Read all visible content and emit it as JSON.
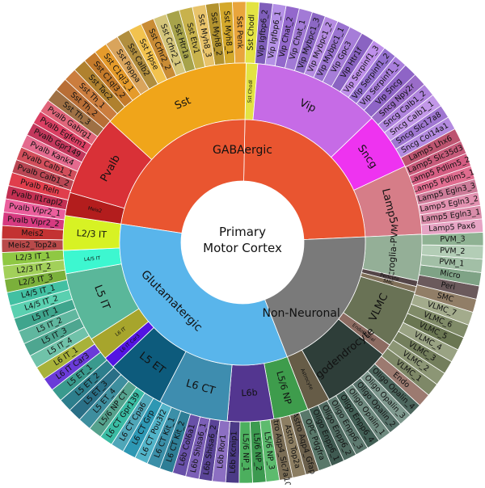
{
  "center": {
    "line1": "Primary",
    "line2": "Motor Cortex"
  },
  "classes": [
    {
      "label": "GABAergic",
      "color": "#E95530",
      "weight": 44
    },
    {
      "label": "Glutamatergic",
      "color": "#59B5EB",
      "weight": 41
    },
    {
      "label": "Non-Neuronal",
      "color": "#7A7A7A",
      "weight": 15
    }
  ],
  "subclasses": [
    {
      "label": "Sst",
      "class": "GABAergic",
      "color": "#F0A51A",
      "weight": 13
    },
    {
      "label": "Sst Chodl",
      "class": "GABAergic",
      "color": "#E3E343",
      "weight": 1
    },
    {
      "label": "Vip",
      "class": "GABAergic",
      "color": "#C66BE6",
      "weight": 11
    },
    {
      "label": "Sncg",
      "class": "GABAergic",
      "color": "#EE33F0",
      "weight": 5
    },
    {
      "label": "Lamp5",
      "class": "GABAergic",
      "color": "#D67D88",
      "weight": 6
    },
    {
      "label": "Meis2",
      "class": "GABAergic",
      "color": "#B31D1D",
      "weight": 2
    },
    {
      "label": "Pvalb",
      "class": "GABAergic",
      "color": "#D93137",
      "weight": 7
    },
    {
      "label": "L2/3 IT",
      "class": "Glutamatergic",
      "color": "#D7F224",
      "weight": 3
    },
    {
      "label": "L4/5 IT",
      "class": "Glutamatergic",
      "color": "#3DF7D0",
      "weight": 2
    },
    {
      "label": "L5 IT",
      "class": "Glutamatergic",
      "color": "#5AB79A",
      "weight": 6
    },
    {
      "label": "L6 IT",
      "class": "Glutamatergic",
      "color": "#A7A52C",
      "weight": 2
    },
    {
      "label": "L6 IT Car3",
      "class": "Glutamatergic",
      "color": "#5314E2",
      "weight": 1
    },
    {
      "label": "L5 ET",
      "class": "Glutamatergic",
      "color": "#0D5B7C",
      "weight": 5
    },
    {
      "label": "L6 CT",
      "class": "Glutamatergic",
      "color": "#3E8DAF",
      "weight": 6
    },
    {
      "label": "L6b",
      "class": "Glutamatergic",
      "color": "#533690",
      "weight": 4
    },
    {
      "label": "L5/6 NP",
      "class": "Glutamatergic",
      "color": "#3E9C4C",
      "weight": 3
    },
    {
      "label": "Astrocyte",
      "class": "Non-Neuronal",
      "color": "#665C47",
      "weight": 2
    },
    {
      "label": "Oligodendrocyte",
      "class": "Non-Neuronal",
      "color": "#2E3E39",
      "weight": 6
    },
    {
      "label": "Endothelial",
      "class": "Non-Neuronal",
      "color": "#8D6C62",
      "weight": 1
    },
    {
      "label": "VLMC",
      "class": "Non-Neuronal",
      "color": "#697255",
      "weight": 5
    },
    {
      "label": "SMC",
      "class": "Non-Neuronal",
      "color": "#807059",
      "weight": 0.5
    },
    {
      "label": "Pericyte",
      "class": "Non-Neuronal",
      "color": "#544547",
      "weight": 0.5
    },
    {
      "label": "Microglia-PVM",
      "class": "Non-Neuronal",
      "color": "#94AF97",
      "weight": 4
    }
  ],
  "clusters": [
    {
      "label": "Sst Chodl",
      "color": "#E3E343"
    },
    {
      "label": "Sst Penk",
      "color": "#E9A53C"
    },
    {
      "label": "Sst Myh8_1",
      "color": "#D4A82A"
    },
    {
      "label": "Sst Myh8_2",
      "color": "#B3932F"
    },
    {
      "label": "Sst Myh8_3",
      "color": "#E8C36A"
    },
    {
      "label": "Sst Etv1",
      "color": "#C8B24C"
    },
    {
      "label": "Sst Htr1a",
      "color": "#A7A34A"
    },
    {
      "label": "Sst Crhr2_1",
      "color": "#D4C57A"
    },
    {
      "label": "Sst Crhr2_2",
      "color": "#C98C35"
    },
    {
      "label": "Sst Hpse",
      "color": "#F2C24E"
    },
    {
      "label": "Sst Calb2",
      "color": "#B18E3E"
    },
    {
      "label": "Sst Pappa",
      "color": "#D9A45C"
    },
    {
      "label": "Sst C1ql3_1",
      "color": "#E59B2B"
    },
    {
      "label": "Sst C1ql3_2",
      "color": "#C47A2A"
    },
    {
      "label": "Sst Tac2",
      "color": "#B0812E"
    },
    {
      "label": "Sst Th_1",
      "color": "#CB7D3E"
    },
    {
      "label": "Sst Th_2",
      "color": "#B86E36"
    },
    {
      "label": "Sst Th_3",
      "color": "#9E7044"
    },
    {
      "label": "Pvalb Gabrg1",
      "color": "#E0657A"
    },
    {
      "label": "Pvalb Egfem1",
      "color": "#DA3F63"
    },
    {
      "label": "Pvalb Gpr149",
      "color": "#C2375C"
    },
    {
      "label": "Pvalb Kank4",
      "color": "#E46A8E"
    },
    {
      "label": "Pvalb Calb1_1",
      "color": "#D24E5B"
    },
    {
      "label": "Pvalb Calb1_2",
      "color": "#B94653"
    },
    {
      "label": "Pvalb Reln",
      "color": "#E03E4C"
    },
    {
      "label": "Pvalb Il1rapl2",
      "color": "#C32F52"
    },
    {
      "label": "Pvalb Vipr2_1",
      "color": "#EA5E9C"
    },
    {
      "label": "Pvalb Vipr2_2",
      "color": "#D63A80"
    },
    {
      "label": "Meis2",
      "color": "#C33232"
    },
    {
      "label": "Meis2_Top2a",
      "color": "#B94A4A"
    },
    {
      "label": "L2/3 IT_1",
      "color": "#8FC843"
    },
    {
      "label": "L2/3 IT_2",
      "color": "#A2D05A"
    },
    {
      "label": "L2/3 IT_3",
      "color": "#7BB03B"
    },
    {
      "label": "L4/5 IT_1",
      "color": "#42C0A2"
    },
    {
      "label": "L4/5 IT_2",
      "color": "#5AD0B0"
    },
    {
      "label": "L5 IT_1",
      "color": "#3FA58D"
    },
    {
      "label": "L5 IT_2",
      "color": "#60B79F"
    },
    {
      "label": "L5 IT_3",
      "color": "#4EA690"
    },
    {
      "label": "L5 IT_4",
      "color": "#70C2A9"
    },
    {
      "label": "L6 IT_1",
      "color": "#A8B23A"
    },
    {
      "label": "L6 IT Car3",
      "color": "#6A3BD8"
    },
    {
      "label": "L5 ET_1",
      "color": "#3A9A8E"
    },
    {
      "label": "L5 ET_2",
      "color": "#2D7E8C"
    },
    {
      "label": "L5 ET_3",
      "color": "#2A6F86"
    },
    {
      "label": "L5 ET_4",
      "color": "#3E8E9E"
    },
    {
      "label": "L5/6 NP CT",
      "color": "#55A28D"
    },
    {
      "label": "L6 CT Gpr139",
      "color": "#3ABCA4"
    },
    {
      "label": "L6 CT Cpa6",
      "color": "#4FA6B8"
    },
    {
      "label": "L6 CT Grp",
      "color": "#2D97B3"
    },
    {
      "label": "L6 CT Pou3f2",
      "color": "#51B3C8"
    },
    {
      "label": "L6 CT Kit_1",
      "color": "#3B8FA8"
    },
    {
      "label": "L6 CT Kit_2",
      "color": "#2E7E96"
    },
    {
      "label": "L6b Col6a1",
      "color": "#6850A8"
    },
    {
      "label": "L6b Shisa6_1",
      "color": "#7B5FB6"
    },
    {
      "label": "L6b Shisa6_2",
      "color": "#5A4497"
    },
    {
      "label": "L6b Ror1",
      "color": "#8C6FC2"
    },
    {
      "label": "L6b Kcnip1",
      "color": "#4B3A86"
    },
    {
      "label": "L5/6 NP_1",
      "color": "#4CAF5E"
    },
    {
      "label": "L5/6 NP_2",
      "color": "#3C9A50"
    },
    {
      "label": "L5/6 NP_3",
      "color": "#5DBB6E"
    },
    {
      "label": "Astro Aqp4_Slc7a10",
      "color": "#7A6D55"
    },
    {
      "label": "Astro Top2a",
      "color": "#8C7E62"
    },
    {
      "label": "Astro Aqp4_Gfap",
      "color": "#6B604C"
    },
    {
      "label": "OPC Pdgfra",
      "color": "#59786A"
    },
    {
      "label": "Oligo Enpp6_1",
      "color": "#3F5A51"
    },
    {
      "label": "Oligo Enpp6_2",
      "color": "#4F6A60"
    },
    {
      "label": "Oligo Enpp6_3",
      "color": "#5E7A70"
    },
    {
      "label": "Oligo Enpp6_4",
      "color": "#425F55"
    },
    {
      "label": "Oligo Opalin_1",
      "color": "#6E8A7F"
    },
    {
      "label": "Oligo Opalin_2",
      "color": "#557068"
    },
    {
      "label": "Oligo Opalin_3",
      "color": "#7D978D"
    },
    {
      "label": "Oligo Opalin_4",
      "color": "#4C665D"
    },
    {
      "label": "Endo",
      "color": "#9C7A70"
    },
    {
      "label": "VLMC_1",
      "color": "#7E8867"
    },
    {
      "label": "VLMC_2",
      "color": "#8C9675"
    },
    {
      "label": "VLMC_3",
      "color": "#737E5C"
    },
    {
      "label": "VLMC_4",
      "color": "#99A283"
    },
    {
      "label": "VLMC_5",
      "color": "#6A7652"
    },
    {
      "label": "VLMC_6",
      "color": "#808B68"
    },
    {
      "label": "VLMC_7",
      "color": "#A3AB8C"
    },
    {
      "label": "SMC",
      "color": "#917E67"
    },
    {
      "label": "Peri",
      "color": "#6B5A5C"
    },
    {
      "label": "Micro",
      "color": "#7FA386"
    },
    {
      "label": "PVM_1",
      "color": "#A2BFA6"
    },
    {
      "label": "PVM_2",
      "color": "#B3CDB6"
    },
    {
      "label": "PVM_3",
      "color": "#8FB293"
    },
    {
      "label": "Lamp5 Pax6",
      "color": "#E6A4C4"
    },
    {
      "label": "Lamp5 Egln3_1",
      "color": "#D98CA9"
    },
    {
      "label": "Lamp5 Egln3_2",
      "color": "#E291B0"
    },
    {
      "label": "Lamp5 Egln3_3",
      "color": "#CC7B98"
    },
    {
      "label": "Lamp5 Pdlim5_1",
      "color": "#E06C8F"
    },
    {
      "label": "Lamp5 Pdlim5_2",
      "color": "#D45D82"
    },
    {
      "label": "Lamp5 Slc35d3",
      "color": "#C75A7A"
    },
    {
      "label": "Lamp5 Lhx6",
      "color": "#BD5470"
    },
    {
      "label": "Sncg Col14a1",
      "color": "#B38ADF"
    },
    {
      "label": "Sncg Slc17a8",
      "color": "#9F76D1"
    },
    {
      "label": "Sncg Calb1_1",
      "color": "#C297E8"
    },
    {
      "label": "Sncg Calb1_2",
      "color": "#AE82DC"
    },
    {
      "label": "Sncg Npy2r",
      "color": "#9A6CC8"
    },
    {
      "label": "Vip Sncg",
      "color": "#8E64C6"
    },
    {
      "label": "Vip Serpinf1_1",
      "color": "#A97EDC"
    },
    {
      "label": "Vip Serpinf1_2",
      "color": "#9470CF"
    },
    {
      "label": "Vip Serpinf1_3",
      "color": "#BE8FEA"
    },
    {
      "label": "Vip Htr1f",
      "color": "#8A63C2"
    },
    {
      "label": "Vip Gpc3",
      "color": "#A67DD8"
    },
    {
      "label": "Vip Mybpc1_1",
      "color": "#9A73D0"
    },
    {
      "label": "Vip Mybpc1_2",
      "color": "#B58BE2"
    },
    {
      "label": "Vip Mybpc1_3",
      "color": "#8C68C4"
    },
    {
      "label": "Vip Chat_1",
      "color": "#A27AD6"
    },
    {
      "label": "Vip Chat_2",
      "color": "#9368CC"
    },
    {
      "label": "Vip Igfbp6_1",
      "color": "#B490E6"
    },
    {
      "label": "Vip Igfbp6_2",
      "color": "#7F5EBA"
    }
  ]
}
